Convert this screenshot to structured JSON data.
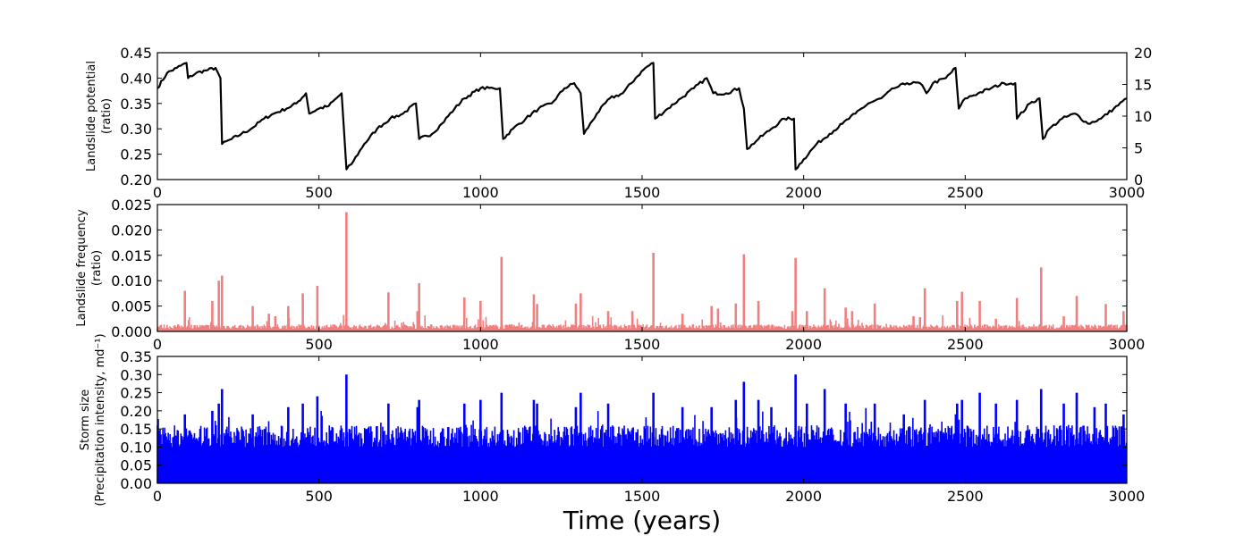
{
  "chart_data": [
    {
      "id": "landslide-potential",
      "type": "line",
      "ylabel": [
        "Landslide potential",
        "(ratio)"
      ],
      "xlim": [
        0,
        3000
      ],
      "ylim": [
        0.2,
        0.45
      ],
      "xticks": [
        "0",
        "500",
        "1000",
        "1500",
        "2000",
        "2500",
        "3000"
      ],
      "yticks": [
        "0.20",
        "0.25",
        "0.30",
        "0.35",
        "0.40",
        "0.45"
      ],
      "y2lim": [
        0,
        20
      ],
      "y2ticks": [
        "0",
        "5",
        "10",
        "15",
        "20"
      ],
      "color": "#000000",
      "series": [
        {
          "x": [
            0,
            30,
            60,
            90,
            95,
            120,
            150,
            180,
            195,
            200,
            230,
            260,
            290,
            330,
            360,
            400,
            430,
            460,
            470,
            500,
            530,
            570,
            585,
            600,
            640,
            680,
            720,
            760,
            800,
            810,
            850,
            880,
            920,
            950,
            1000,
            1040,
            1060,
            1070,
            1100,
            1140,
            1180,
            1220,
            1260,
            1290,
            1310,
            1320,
            1360,
            1400,
            1440,
            1480,
            1510,
            1535,
            1540,
            1580,
            1620,
            1660,
            1700,
            1720,
            1760,
            1800,
            1815,
            1825,
            1860,
            1900,
            1940,
            1970,
            1975,
            2000,
            2040,
            2080,
            2120,
            2160,
            2200,
            2240,
            2280,
            2320,
            2360,
            2380,
            2400,
            2440,
            2470,
            2480,
            2500,
            2540,
            2580,
            2620,
            2655,
            2660,
            2700,
            2730,
            2740,
            2760,
            2800,
            2840,
            2880,
            2920,
            2960,
            3000
          ],
          "y": [
            0.38,
            0.41,
            0.42,
            0.43,
            0.4,
            0.41,
            0.415,
            0.42,
            0.4,
            0.27,
            0.28,
            0.29,
            0.3,
            0.32,
            0.33,
            0.34,
            0.35,
            0.37,
            0.33,
            0.34,
            0.345,
            0.37,
            0.22,
            0.23,
            0.27,
            0.3,
            0.32,
            0.33,
            0.35,
            0.28,
            0.29,
            0.31,
            0.34,
            0.36,
            0.38,
            0.38,
            0.38,
            0.28,
            0.3,
            0.32,
            0.34,
            0.35,
            0.38,
            0.39,
            0.37,
            0.29,
            0.33,
            0.36,
            0.37,
            0.4,
            0.42,
            0.43,
            0.32,
            0.34,
            0.36,
            0.38,
            0.4,
            0.37,
            0.37,
            0.38,
            0.34,
            0.26,
            0.28,
            0.3,
            0.32,
            0.32,
            0.22,
            0.24,
            0.27,
            0.29,
            0.31,
            0.33,
            0.35,
            0.36,
            0.38,
            0.39,
            0.39,
            0.37,
            0.39,
            0.4,
            0.42,
            0.34,
            0.36,
            0.37,
            0.38,
            0.39,
            0.39,
            0.32,
            0.35,
            0.36,
            0.28,
            0.3,
            0.32,
            0.33,
            0.31,
            0.32,
            0.34,
            0.36
          ]
        }
      ]
    },
    {
      "id": "landslide-frequency",
      "type": "bar",
      "ylabel": [
        "Landslide frequency",
        "(ratio)"
      ],
      "xlim": [
        0,
        3000
      ],
      "ylim": [
        0,
        0.025
      ],
      "xticks": [
        "0",
        "500",
        "1000",
        "1500",
        "2000",
        "2500",
        "3000"
      ],
      "yticks": [
        "0.000",
        "0.005",
        "0.010",
        "0.015",
        "0.020",
        "0.025"
      ],
      "color": "#f08080",
      "x": [
        85,
        170,
        190,
        200,
        295,
        345,
        365,
        405,
        450,
        495,
        585,
        715,
        805,
        810,
        950,
        1000,
        1065,
        1165,
        1175,
        1295,
        1310,
        1395,
        1470,
        1535,
        1625,
        1715,
        1735,
        1790,
        1815,
        1860,
        1965,
        1975,
        2010,
        2065,
        2130,
        2150,
        2220,
        2340,
        2360,
        2375,
        2475,
        2490,
        2545,
        2595,
        2660,
        2735,
        2805,
        2845,
        2935,
        2990
      ],
      "y": [
        0.008,
        0.006,
        0.01,
        0.011,
        0.005,
        0.0035,
        0.003,
        0.005,
        0.0075,
        0.009,
        0.0235,
        0.0077,
        0.004,
        0.0095,
        0.0067,
        0.006,
        0.0147,
        0.0073,
        0.0054,
        0.0055,
        0.0075,
        0.004,
        0.004,
        0.0155,
        0.0035,
        0.005,
        0.0045,
        0.0055,
        0.0152,
        0.006,
        0.004,
        0.0145,
        0.004,
        0.0085,
        0.0047,
        0.004,
        0.0055,
        0.003,
        0.0028,
        0.0085,
        0.006,
        0.0078,
        0.006,
        0.0025,
        0.0066,
        0.0126,
        0.003,
        0.007,
        0.0054,
        0.004
      ],
      "baseline": 0.0005
    },
    {
      "id": "storm-size",
      "type": "bar",
      "ylabel": [
        "Storm size",
        "(Precipitation intensity, md⁻¹)"
      ],
      "xlabel": "Time (years)",
      "xlim": [
        0,
        3000
      ],
      "ylim": [
        0,
        0.35
      ],
      "xticks": [
        "0",
        "500",
        "1000",
        "1500",
        "2000",
        "2500",
        "3000"
      ],
      "yticks": [
        "0.00",
        "0.05",
        "0.10",
        "0.15",
        "0.20",
        "0.25",
        "0.30",
        "0.35"
      ],
      "color": "#0000ff",
      "x": [
        85,
        170,
        190,
        200,
        295,
        405,
        450,
        495,
        585,
        715,
        805,
        810,
        950,
        1000,
        1065,
        1165,
        1175,
        1295,
        1310,
        1395,
        1535,
        1625,
        1715,
        1790,
        1815,
        1860,
        1900,
        1975,
        2010,
        2065,
        2130,
        2220,
        2310,
        2375,
        2475,
        2490,
        2545,
        2595,
        2660,
        2735,
        2805,
        2845,
        2900,
        2935,
        2990
      ],
      "y": [
        0.19,
        0.2,
        0.22,
        0.26,
        0.19,
        0.21,
        0.22,
        0.24,
        0.3,
        0.22,
        0.21,
        0.23,
        0.22,
        0.23,
        0.25,
        0.23,
        0.22,
        0.21,
        0.25,
        0.22,
        0.25,
        0.21,
        0.21,
        0.23,
        0.28,
        0.23,
        0.21,
        0.3,
        0.22,
        0.26,
        0.22,
        0.22,
        0.19,
        0.23,
        0.22,
        0.23,
        0.25,
        0.22,
        0.23,
        0.26,
        0.22,
        0.25,
        0.21,
        0.22,
        0.19
      ],
      "base_range": [
        0.1,
        0.16
      ]
    }
  ]
}
